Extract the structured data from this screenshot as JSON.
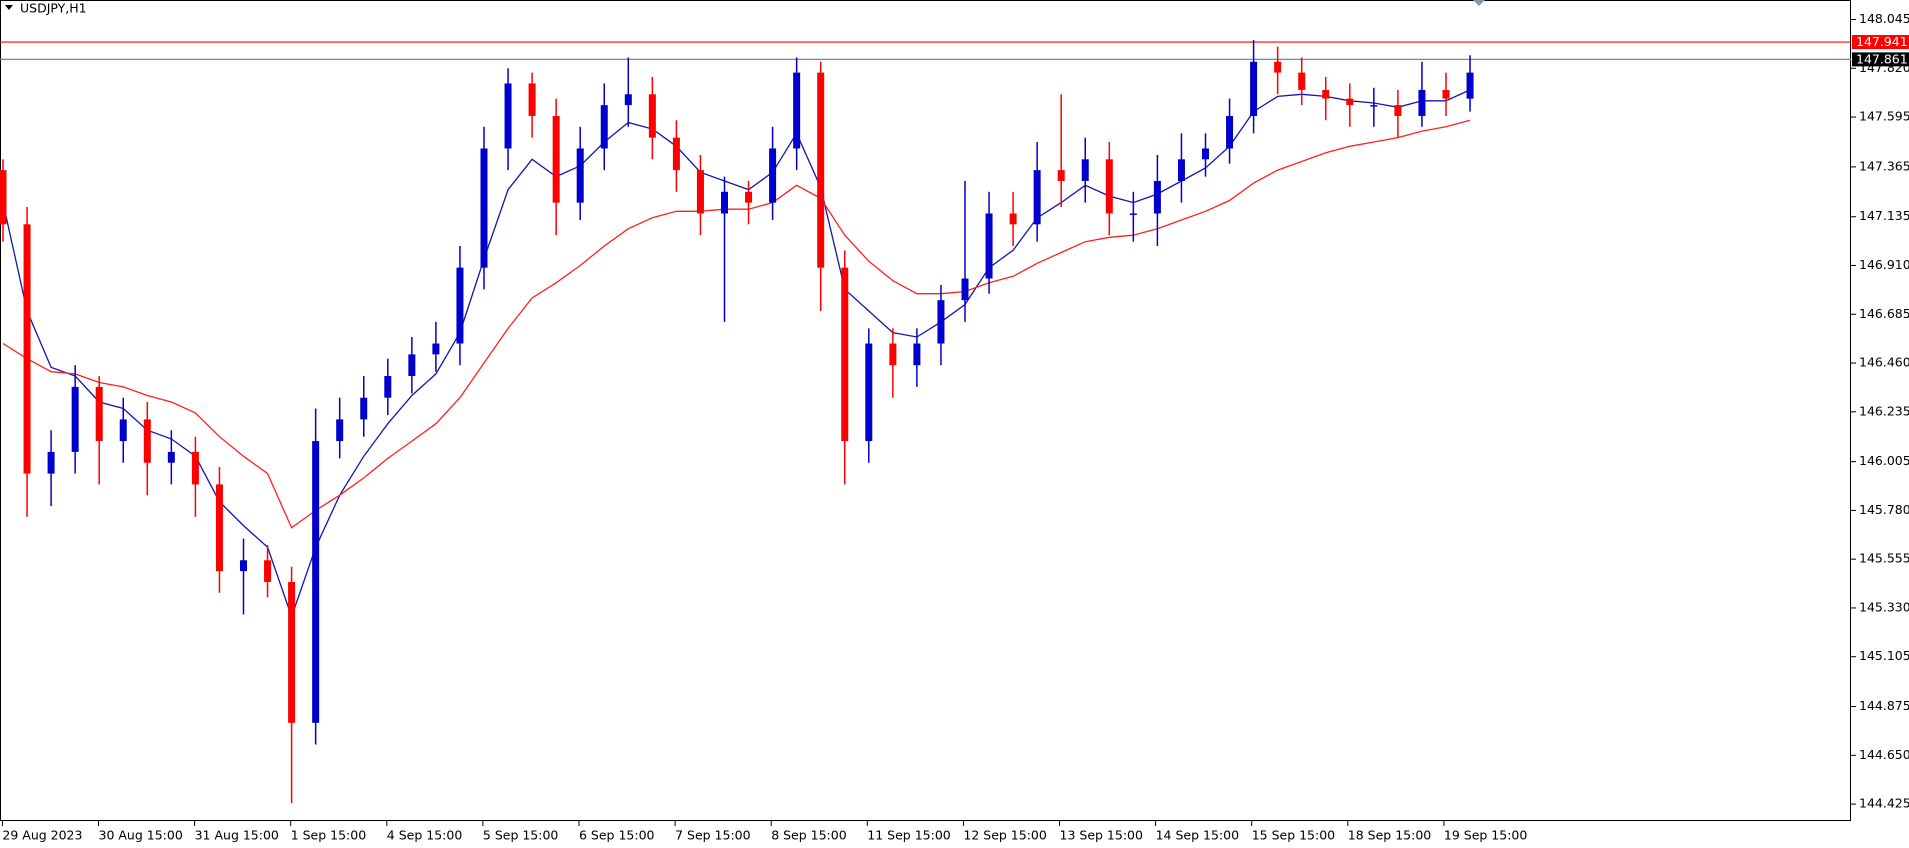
{
  "chart_data": {
    "type": "candlestick",
    "title": "USDJPY,H1",
    "up_color": "#0000cd",
    "down_color": "#ff0000",
    "x_labels": [
      "29 Aug 2023",
      "30 Aug 15:00",
      "31 Aug 15:00",
      "1 Sep 15:00",
      "4 Sep 15:00",
      "5 Sep 15:00",
      "6 Sep 15:00",
      "7 Sep 15:00",
      "8 Sep 15:00",
      "11 Sep 15:00",
      "12 Sep 15:00",
      "13 Sep 15:00",
      "14 Sep 15:00",
      "15 Sep 15:00",
      "18 Sep 15:00",
      "19 Sep 15:00"
    ],
    "open": [
      147.35,
      147.1,
      145.95,
      146.05,
      146.35,
      146.1,
      146.2,
      146.0,
      146.05,
      145.9,
      145.5,
      145.55,
      145.45,
      144.8,
      146.1,
      146.2,
      146.3,
      146.4,
      146.5,
      146.55,
      146.9,
      147.45,
      147.75,
      147.6,
      147.2,
      147.45,
      147.65,
      147.7,
      147.5,
      147.35,
      147.15,
      147.25,
      147.2,
      147.45,
      147.8,
      146.9,
      146.1,
      146.55,
      146.45,
      146.55,
      146.75,
      146.85,
      147.15,
      147.1,
      147.35,
      147.3,
      147.4,
      147.15,
      147.15,
      147.3,
      147.4,
      147.45,
      147.6,
      147.85,
      147.8,
      147.72,
      147.68,
      147.65,
      147.65,
      147.6,
      147.72,
      147.68
    ],
    "high": [
      147.4,
      147.18,
      146.15,
      146.45,
      146.4,
      146.3,
      146.28,
      146.15,
      146.12,
      145.98,
      145.65,
      145.62,
      145.52,
      146.25,
      146.3,
      146.4,
      146.48,
      146.58,
      146.65,
      147.0,
      147.55,
      147.82,
      147.8,
      147.68,
      147.55,
      147.75,
      147.87,
      147.78,
      147.58,
      147.42,
      147.32,
      147.3,
      147.55,
      147.87,
      147.85,
      146.98,
      146.62,
      146.62,
      146.62,
      146.82,
      147.3,
      147.25,
      147.25,
      147.48,
      147.7,
      147.5,
      147.48,
      147.25,
      147.42,
      147.52,
      147.52,
      147.68,
      147.95,
      147.92,
      147.87,
      147.78,
      147.75,
      147.73,
      147.72,
      147.85,
      147.8,
      147.88
    ],
    "low": [
      147.02,
      145.75,
      145.8,
      145.95,
      145.9,
      146.0,
      145.85,
      145.9,
      145.75,
      145.4,
      145.3,
      145.38,
      144.43,
      144.7,
      146.02,
      146.12,
      146.22,
      146.32,
      146.42,
      146.45,
      146.8,
      147.35,
      147.5,
      147.05,
      147.12,
      147.35,
      147.55,
      147.4,
      147.25,
      147.05,
      146.65,
      147.1,
      147.12,
      147.35,
      146.7,
      145.9,
      146.0,
      146.3,
      146.35,
      146.45,
      146.65,
      146.78,
      147.0,
      147.02,
      147.18,
      147.2,
      147.05,
      147.02,
      147.0,
      147.2,
      147.32,
      147.38,
      147.52,
      147.7,
      147.65,
      147.58,
      147.55,
      147.55,
      147.5,
      147.55,
      147.6,
      147.62
    ],
    "close": [
      147.1,
      145.95,
      146.05,
      146.35,
      146.1,
      146.2,
      146.0,
      146.05,
      145.9,
      145.5,
      145.55,
      145.45,
      144.8,
      146.1,
      146.2,
      146.3,
      146.4,
      146.5,
      146.55,
      146.9,
      147.45,
      147.75,
      147.6,
      147.2,
      147.45,
      147.65,
      147.7,
      147.5,
      147.35,
      147.15,
      147.25,
      147.2,
      147.45,
      147.8,
      146.9,
      146.1,
      146.55,
      146.45,
      146.55,
      146.75,
      146.85,
      147.15,
      147.1,
      147.35,
      147.3,
      147.4,
      147.15,
      147.15,
      147.3,
      147.4,
      147.45,
      147.6,
      147.85,
      147.8,
      147.72,
      147.68,
      147.65,
      147.65,
      147.6,
      147.72,
      147.68,
      147.8
    ],
    "lines": [
      {
        "color": "#1414b4",
        "values": [
          147.2,
          146.7,
          146.44,
          146.4,
          146.28,
          146.25,
          146.15,
          146.11,
          146.03,
          145.82,
          145.71,
          145.61,
          145.29,
          145.61,
          145.85,
          146.03,
          146.18,
          146.31,
          146.41,
          146.6,
          146.94,
          147.26,
          147.4,
          147.32,
          147.37,
          147.48,
          147.57,
          147.54,
          147.46,
          147.34,
          147.3,
          147.26,
          147.34,
          147.52,
          147.27,
          146.8,
          146.7,
          146.6,
          146.58,
          146.65,
          146.73,
          146.9,
          146.98,
          147.13,
          147.2,
          147.28,
          147.23,
          147.2,
          147.24,
          147.3,
          147.36,
          147.46,
          147.62,
          147.69,
          147.7,
          147.69,
          147.67,
          147.66,
          147.64,
          147.67,
          147.67,
          147.72
        ]
      },
      {
        "color": "#ff2020",
        "values": [
          146.55,
          146.48,
          146.42,
          146.41,
          146.37,
          146.35,
          146.31,
          146.28,
          146.23,
          146.12,
          146.03,
          145.95,
          145.7,
          145.78,
          145.85,
          145.93,
          146.02,
          146.1,
          146.18,
          146.3,
          146.46,
          146.62,
          146.76,
          146.83,
          146.91,
          147.0,
          147.08,
          147.13,
          147.16,
          147.16,
          147.17,
          147.17,
          147.2,
          147.28,
          147.22,
          147.05,
          146.93,
          146.84,
          146.78,
          146.78,
          146.79,
          146.83,
          146.86,
          146.92,
          146.97,
          147.02,
          147.04,
          147.05,
          147.08,
          147.12,
          147.16,
          147.21,
          147.29,
          147.35,
          147.39,
          147.43,
          147.46,
          147.48,
          147.5,
          147.53,
          147.55,
          147.58
        ]
      }
    ],
    "hlines": [
      {
        "value": 147.941,
        "color": "#ff0000"
      },
      {
        "value": 147.861,
        "color": "#778899"
      }
    ],
    "ylim": [
      144.347,
      148.135
    ],
    "yticks": [
      148.045,
      {
        "value": 147.82,
        "label": "147.820"
      },
      147.595,
      147.365,
      147.135,
      {
        "value": 146.91,
        "label": "146.910"
      },
      146.685,
      {
        "value": 146.46,
        "label": "146.460"
      },
      146.235,
      146.005,
      {
        "value": 145.78,
        "label": "145.780"
      },
      145.555,
      {
        "value": 145.33,
        "label": "145.330"
      },
      145.105,
      144.875,
      {
        "value": 144.65,
        "label": "144.650"
      },
      144.425
    ]
  }
}
